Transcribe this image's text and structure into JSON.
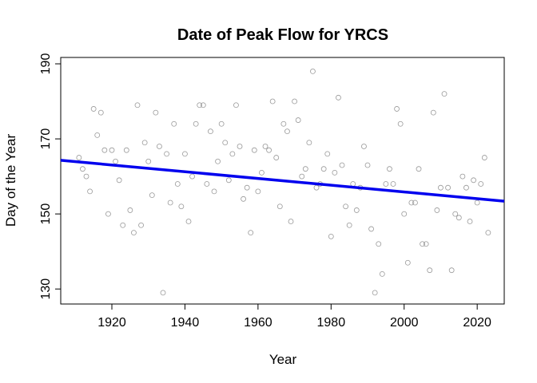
{
  "chart_data": {
    "type": "scatter",
    "title": "Date of Peak Flow for YRCS",
    "x_label": "Year",
    "y_label": "Day of the Year",
    "xlim": [
      1906,
      2027.4
    ],
    "ylim": [
      126,
      191.7
    ],
    "xticks": [
      1920,
      1940,
      1960,
      1980,
      2000,
      2020
    ],
    "yticks": [
      130,
      150,
      170,
      190
    ],
    "series": [
      {
        "color": "#999999",
        "x": [
          1911,
          1912,
          1913,
          1914,
          1915,
          1916,
          1917,
          1918,
          1919,
          1920,
          1921,
          1922,
          1923,
          1924,
          1925,
          1926,
          1927,
          1928,
          1929,
          1930,
          1931,
          1932,
          1933,
          1934,
          1935,
          1936,
          1937,
          1938,
          1939,
          1940,
          1941,
          1942,
          1943,
          1944,
          1945,
          1946,
          1947,
          1948,
          1949,
          1950,
          1951,
          1952,
          1953,
          1954,
          1955,
          1956,
          1957,
          1958,
          1959,
          1960,
          1961,
          1962,
          1963,
          1964,
          1965,
          1966,
          1967,
          1968,
          1969,
          1970,
          1971,
          1972,
          1973,
          1974,
          1975,
          1976,
          1977,
          1978,
          1979,
          1980,
          1981,
          1982,
          1983,
          1984,
          1985,
          1986,
          1987,
          1988,
          1989,
          1990,
          1991,
          1992,
          1993,
          1994,
          1995,
          1996,
          1997,
          1998,
          1999,
          2000,
          2001,
          2002,
          2003,
          2004,
          2005,
          2006,
          2007,
          2008,
          2009,
          2010,
          2011,
          2012,
          2013,
          2014,
          2015,
          2016,
          2017,
          2018,
          2019,
          2020,
          2021,
          2022,
          2023
        ],
        "values": [
          165,
          162,
          160,
          156,
          178,
          171,
          177,
          167,
          150,
          167,
          164,
          159,
          147,
          167,
          151,
          145,
          179,
          147,
          169,
          164,
          155,
          177,
          168,
          129,
          166,
          153,
          174,
          158,
          152,
          166,
          148,
          160,
          174,
          179,
          179,
          158,
          172,
          156,
          164,
          174,
          169,
          159,
          166,
          179,
          168,
          154,
          157,
          145,
          167,
          156,
          161,
          168,
          167,
          180,
          165,
          152,
          174,
          172,
          148,
          180,
          175,
          160,
          162,
          169,
          188,
          157,
          158,
          162,
          166,
          144,
          161,
          181,
          163,
          152,
          147,
          158,
          151,
          157,
          168,
          163,
          146,
          129,
          142,
          134,
          158,
          162,
          158,
          178,
          174,
          150,
          137,
          153,
          153,
          162,
          142,
          142,
          135,
          177,
          151,
          157,
          182,
          157,
          135,
          150,
          149,
          160,
          157,
          148,
          159,
          153,
          158,
          165,
          145
        ]
      },
      {
        "color": "#0000ee",
        "line": true,
        "x": [
          1906,
          2027.4
        ],
        "values": [
          164.3,
          153.4
        ]
      }
    ]
  }
}
